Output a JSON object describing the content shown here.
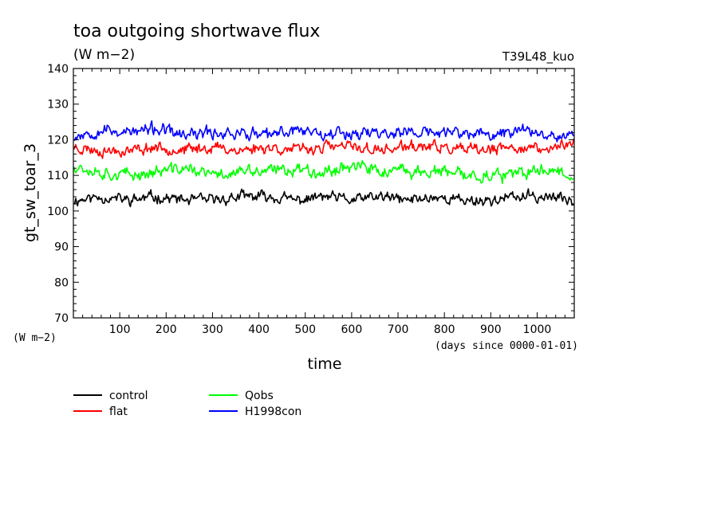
{
  "chart_data": {
    "type": "line",
    "title": "toa outgoing shortwave flux",
    "subtitle": "(W m−2)",
    "tag": "T39L48_kuo",
    "ylabel": "gt_sw_toar_3",
    "yunit": "(W m−2)",
    "xlabel": "time",
    "xunit": "(days since 0000-01-01)",
    "xlim": [
      0,
      1080
    ],
    "ylim": [
      70,
      140
    ],
    "xticks": [
      100,
      200,
      300,
      400,
      500,
      600,
      700,
      800,
      900,
      1000
    ],
    "yticks": [
      70,
      80,
      90,
      100,
      110,
      120,
      130,
      140
    ],
    "grid": false,
    "legend_position": "bottom-left",
    "series": [
      {
        "name": "control",
        "color": "#000000",
        "mean": 103.5,
        "amp": 1.6,
        "seed": 11,
        "x": [
          0,
          60,
          120,
          180,
          240,
          300,
          360,
          420,
          480,
          540,
          600,
          660,
          720,
          780,
          840,
          900,
          960,
          1020,
          1080
        ],
        "values": [
          103,
          104,
          103,
          104,
          103,
          103,
          104,
          104,
          103,
          104,
          103,
          104,
          103,
          104,
          103,
          103,
          104,
          104,
          103
        ]
      },
      {
        "name": "flat",
        "color": "#ff0000",
        "mean": 117.5,
        "amp": 1.6,
        "seed": 23,
        "x": [
          0,
          60,
          120,
          180,
          240,
          300,
          360,
          420,
          480,
          540,
          600,
          660,
          720,
          780,
          840,
          900,
          960,
          1020,
          1080
        ],
        "values": [
          118,
          117,
          117,
          118,
          117,
          118,
          117,
          118,
          117,
          118,
          118,
          117,
          118,
          118,
          117,
          117,
          118,
          117,
          120
        ]
      },
      {
        "name": "Qobs",
        "color": "#00ff00",
        "mean": 111,
        "amp": 1.8,
        "seed": 37,
        "x": [
          0,
          60,
          120,
          180,
          240,
          300,
          360,
          420,
          480,
          540,
          600,
          660,
          720,
          780,
          840,
          900,
          960,
          1020,
          1080
        ],
        "values": [
          113,
          111,
          110,
          111,
          112,
          110,
          111,
          111,
          112,
          111,
          113,
          111,
          111,
          111,
          110,
          110,
          110,
          112,
          110
        ]
      },
      {
        "name": "H1998con",
        "color": "#0000ff",
        "mean": 122,
        "amp": 1.8,
        "seed": 53,
        "x": [
          0,
          60,
          120,
          180,
          240,
          300,
          360,
          420,
          480,
          540,
          600,
          660,
          720,
          780,
          840,
          900,
          960,
          1020,
          1080
        ],
        "values": [
          121,
          123,
          122,
          123,
          121,
          122,
          122,
          121,
          123,
          122,
          122,
          122,
          122,
          122,
          122,
          121,
          123,
          122,
          121
        ]
      }
    ]
  }
}
